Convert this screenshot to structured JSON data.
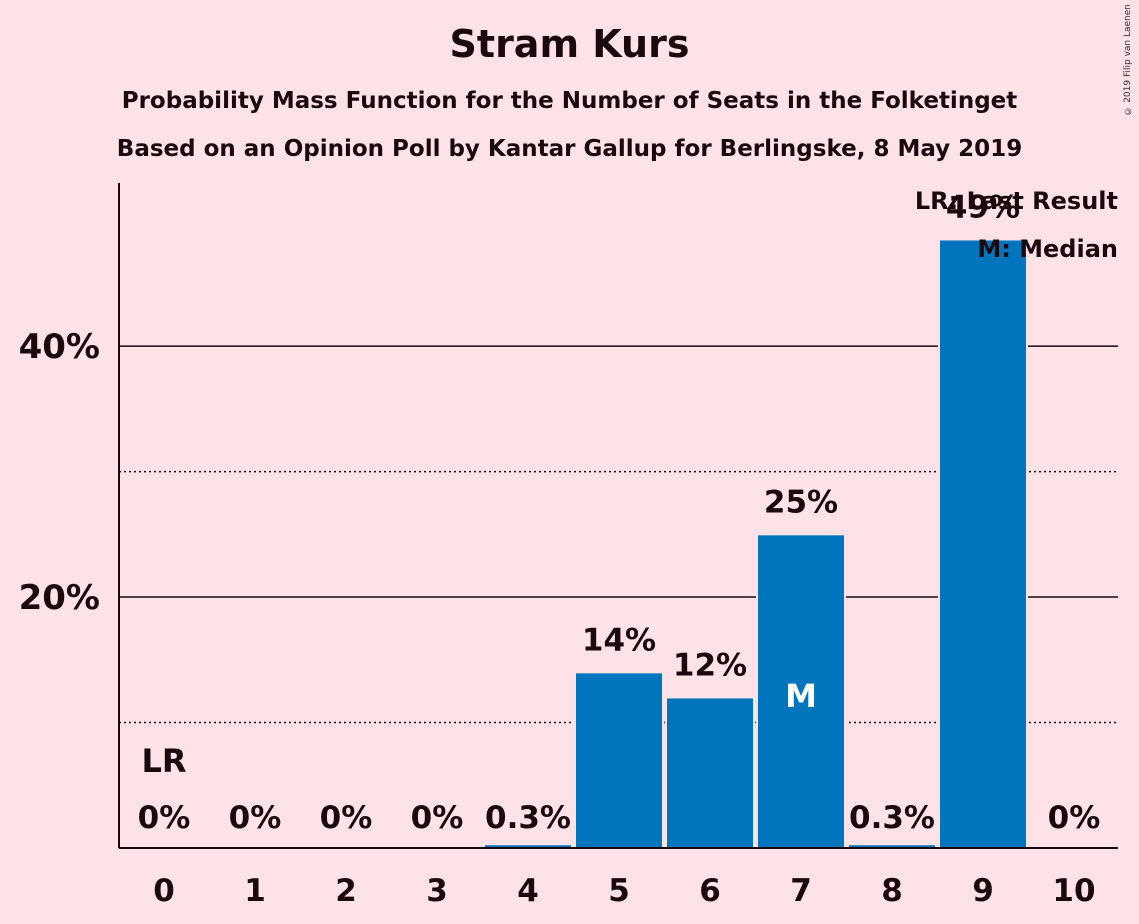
{
  "title": "Stram Kurs",
  "subtitle_1": "Probability Mass Function for the Number of Seats in the Folketinget",
  "subtitle_2": "Based on an Opinion Poll by Kantar Gallup for Berlingske, 8 May 2019",
  "copyright": "© 2019 Filip van Laenen",
  "legend": {
    "last_result": "LR: Last Result",
    "median": "M: Median"
  },
  "colors": {
    "background": "#FDE2E8",
    "bar": "#0074BD",
    "text": "#1a0a0f"
  },
  "chart_data": {
    "type": "bar",
    "categories": [
      "0",
      "1",
      "2",
      "3",
      "4",
      "5",
      "6",
      "7",
      "8",
      "9",
      "10"
    ],
    "values": [
      0,
      0,
      0,
      0,
      0.3,
      14,
      12,
      25,
      0.3,
      48.5,
      0
    ],
    "data_labels": [
      "0%",
      "0%",
      "0%",
      "0%",
      "0.3%",
      "14%",
      "12%",
      "25%",
      "0.3%",
      "49%",
      "0%"
    ],
    "ylim": [
      0,
      53
    ],
    "yticks_major": [
      20,
      40
    ],
    "ytick_labels": [
      "20%",
      "40%"
    ],
    "yticks_minor": [
      10,
      30
    ],
    "last_result_category": "0",
    "last_result_label": "LR",
    "median_category": "7",
    "median_label": "M"
  }
}
